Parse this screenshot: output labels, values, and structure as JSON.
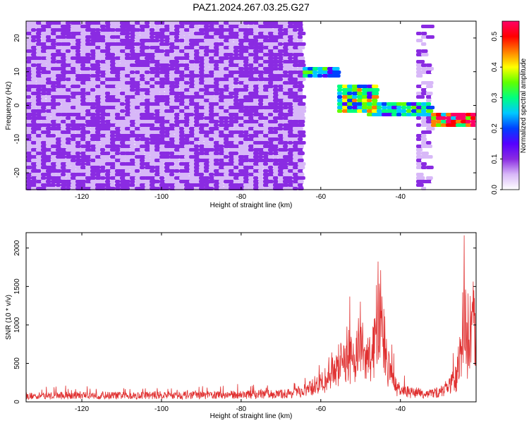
{
  "title": "PAZ1.2024.267.03.25.G27",
  "chart_data": [
    {
      "type": "heatmap",
      "xlabel": "Height of straight line (km)",
      "ylabel": "Frequency (Hz)",
      "xlim": [
        -134,
        -21
      ],
      "ylim": [
        -25,
        25
      ],
      "xticks": [
        -120,
        -100,
        -80,
        -60,
        -40
      ],
      "yticks": [
        -20,
        -10,
        0,
        10,
        20
      ],
      "xtick_labels": [
        "-120",
        "-100",
        "-80",
        "-60",
        "-40"
      ],
      "ytick_labels": [
        "-20",
        "-10",
        "0",
        "10",
        "20"
      ],
      "colorbar": {
        "label": "Normalized spectral amplitude",
        "range": [
          0.0,
          0.55
        ],
        "ticks": [
          0.0,
          0.1,
          0.2,
          0.3,
          0.4,
          0.5
        ],
        "tick_labels": [
          "0.0",
          "0.1",
          "0.2",
          "0.3",
          "0.4",
          "0.5"
        ],
        "colors": [
          "#ffffff",
          "#d8b8f8",
          "#8a2be2",
          "#5500ff",
          "#0040ff",
          "#00c8ff",
          "#00ff80",
          "#60ff00",
          "#ffff00",
          "#ff8000",
          "#ff0000",
          "#ff0066"
        ]
      },
      "features": [
        {
          "x_range": [
            -134,
            -64
          ],
          "y_range": [
            -25,
            25
          ],
          "level": 0.08
        },
        {
          "x_range": [
            -64,
            -56
          ],
          "y_range": [
            8,
            11
          ],
          "level": 0.25
        },
        {
          "x_range": [
            -56,
            -46
          ],
          "y_range": [
            -2,
            6
          ],
          "level": 0.3
        },
        {
          "x_range": [
            -48,
            -32
          ],
          "y_range": [
            -3,
            1
          ],
          "level": 0.25
        },
        {
          "x_range": [
            -32,
            -21
          ],
          "y_range": [
            -6,
            -2
          ],
          "level": 0.45
        }
      ]
    },
    {
      "type": "line",
      "xlabel": "Height of straight line (km)",
      "ylabel": "SNR (10 * v/v)",
      "xlim": [
        -134,
        -21
      ],
      "ylim": [
        0,
        2200
      ],
      "xticks": [
        -120,
        -100,
        -80,
        -60,
        -40
      ],
      "yticks": [
        0,
        500,
        1000,
        1500,
        2000
      ],
      "xtick_labels": [
        "-120",
        "-100",
        "-80",
        "-60",
        "-40"
      ],
      "ytick_labels": [
        "0",
        "500",
        "1000",
        "1500",
        "2000"
      ],
      "color": "#e03030",
      "x": [
        -134,
        -120,
        -110,
        -100,
        -90,
        -80,
        -70,
        -65,
        -62,
        -60,
        -58,
        -56,
        -54,
        -52,
        -51,
        -50,
        -49,
        -48,
        -47,
        -46,
        -45,
        -44,
        -43,
        -42,
        -41,
        -40,
        -38,
        -36,
        -34,
        -32,
        -30,
        -28,
        -26,
        -25,
        -24.5,
        -24,
        -23.5,
        -23,
        -22.5,
        -22,
        -21
      ],
      "y": [
        120,
        140,
        130,
        140,
        135,
        150,
        160,
        200,
        300,
        380,
        500,
        700,
        850,
        900,
        1000,
        1350,
        800,
        900,
        1000,
        1300,
        1650,
        1200,
        700,
        450,
        300,
        230,
        200,
        180,
        170,
        180,
        200,
        300,
        500,
        900,
        1600,
        2200,
        1300,
        900,
        1500,
        1700,
        1300
      ]
    }
  ]
}
